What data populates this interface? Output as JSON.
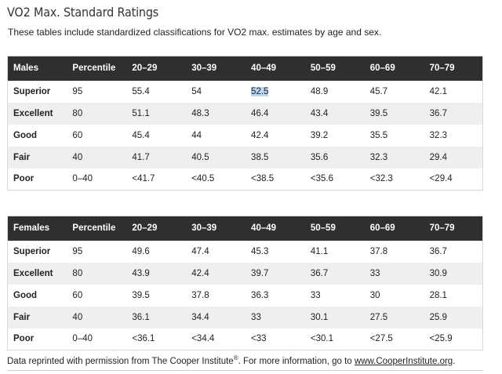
{
  "page": {
    "title": "VO2 Max. Standard Ratings",
    "intro": "These tables include standardized classifications for VO2 max. estimates by age and sex."
  },
  "males": {
    "headers": [
      "Males",
      "Percentile",
      "20–29",
      "30–39",
      "40–49",
      "50–59",
      "60–69",
      "70–79"
    ],
    "rows": [
      [
        "Superior",
        "95",
        "55.4",
        "54",
        "52.5",
        "48.9",
        "45.7",
        "42.1"
      ],
      [
        "Excellent",
        "80",
        "51.1",
        "48.3",
        "46.4",
        "43.4",
        "39.5",
        "36.7"
      ],
      [
        "Good",
        "60",
        "45.4",
        "44",
        "42.4",
        "39.2",
        "35.5",
        "32.3"
      ],
      [
        "Fair",
        "40",
        "41.7",
        "40.5",
        "38.5",
        "35.6",
        "32.3",
        "29.4"
      ],
      [
        "Poor",
        "0–40",
        "<41.7",
        "<40.5",
        "<38.5",
        "<35.6",
        "<32.3",
        "<29.4"
      ]
    ]
  },
  "females": {
    "headers": [
      "Females",
      "Percentile",
      "20–29",
      "30–39",
      "40–49",
      "50–59",
      "60–69",
      "70–79"
    ],
    "rows": [
      [
        "Superior",
        "95",
        "49.6",
        "47.4",
        "45.3",
        "41.1",
        "37.8",
        "36.7"
      ],
      [
        "Excellent",
        "80",
        "43.9",
        "42.4",
        "39.7",
        "36.7",
        "33",
        "30.9"
      ],
      [
        "Good",
        "60",
        "39.5",
        "37.8",
        "36.3",
        "33",
        "30",
        "28.1"
      ],
      [
        "Fair",
        "40",
        "36.1",
        "34.4",
        "33",
        "30.1",
        "27.5",
        "25.9"
      ],
      [
        "Poor",
        "0–40",
        "<36.1",
        "<34.4",
        "<33",
        "<30.1",
        "<27.5",
        "<25.9"
      ]
    ]
  },
  "footnote": {
    "prefix": "Data reprinted with permission from The Cooper Institute",
    "reg": "®",
    "middle": ". For more information, go to ",
    "link": "www.CooperInstitute.org",
    "suffix": "."
  },
  "colors": {
    "header_bg": "#2f2f2f",
    "stripe_bg": "#efefef",
    "selection_bg": "#bcd5f3"
  }
}
